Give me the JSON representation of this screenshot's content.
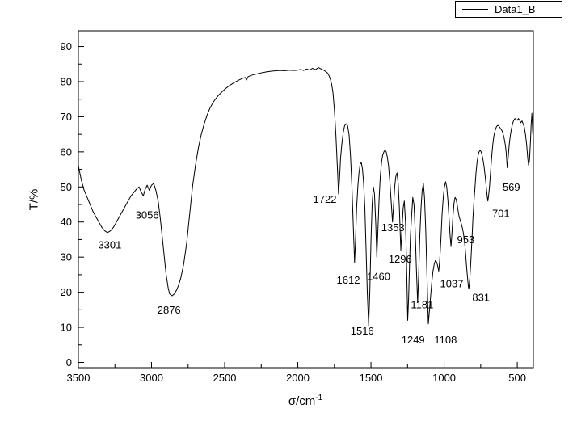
{
  "window": {
    "background": "#ffffff",
    "foreground": "#000000"
  },
  "chart_data": {
    "type": "line",
    "title": "",
    "xlabel_base": "σ/cm",
    "xlabel_sup": "-1",
    "ylabel": "T/%",
    "legend": {
      "label": "Data1_B",
      "position": "top-right"
    },
    "grid": false,
    "x_axis": {
      "direction": "decreasing",
      "left_value": 3500,
      "right_value": 390,
      "major_ticks": [
        3500,
        3000,
        2500,
        2000,
        1500,
        1000,
        500
      ],
      "minor_ticks": [
        3250,
        2750,
        2250,
        1750,
        1250,
        750
      ]
    },
    "y_axis": {
      "bottom_value": -1.5,
      "top_value": 94.5,
      "major_ticks": [
        0,
        10,
        20,
        30,
        40,
        50,
        60,
        70,
        80,
        90
      ],
      "minor_ticks": [
        5,
        15,
        25,
        35,
        45,
        55,
        65,
        75,
        85
      ]
    },
    "series": [
      {
        "name": "Data1_B",
        "color": "#000000",
        "points": [
          [
            3500,
            56
          ],
          [
            3480,
            52
          ],
          [
            3460,
            49
          ],
          [
            3440,
            47
          ],
          [
            3420,
            45
          ],
          [
            3400,
            43
          ],
          [
            3380,
            41.5
          ],
          [
            3360,
            40
          ],
          [
            3340,
            38.5
          ],
          [
            3320,
            37.5
          ],
          [
            3301,
            37
          ],
          [
            3280,
            37.5
          ],
          [
            3260,
            38.5
          ],
          [
            3240,
            40
          ],
          [
            3220,
            41.5
          ],
          [
            3200,
            43
          ],
          [
            3180,
            44.5
          ],
          [
            3160,
            46
          ],
          [
            3140,
            47.5
          ],
          [
            3120,
            48.5
          ],
          [
            3100,
            49.5
          ],
          [
            3085,
            50
          ],
          [
            3070,
            48.5
          ],
          [
            3056,
            47.5
          ],
          [
            3045,
            49.2
          ],
          [
            3030,
            50.5
          ],
          [
            3015,
            49
          ],
          [
            3000,
            50.5
          ],
          [
            2985,
            51
          ],
          [
            2970,
            49
          ],
          [
            2955,
            46
          ],
          [
            2940,
            41
          ],
          [
            2920,
            33
          ],
          [
            2900,
            25
          ],
          [
            2885,
            21
          ],
          [
            2876,
            19.5
          ],
          [
            2860,
            19
          ],
          [
            2845,
            19.5
          ],
          [
            2830,
            20.5
          ],
          [
            2815,
            22
          ],
          [
            2800,
            24
          ],
          [
            2780,
            28
          ],
          [
            2760,
            34
          ],
          [
            2740,
            42
          ],
          [
            2720,
            50
          ],
          [
            2700,
            56
          ],
          [
            2680,
            61
          ],
          [
            2660,
            65
          ],
          [
            2640,
            68
          ],
          [
            2620,
            70.5
          ],
          [
            2600,
            72.5
          ],
          [
            2580,
            74
          ],
          [
            2560,
            75.2
          ],
          [
            2540,
            76.2
          ],
          [
            2520,
            77
          ],
          [
            2500,
            77.8
          ],
          [
            2470,
            78.8
          ],
          [
            2440,
            79.6
          ],
          [
            2410,
            80.3
          ],
          [
            2380,
            80.9
          ],
          [
            2360,
            81.2
          ],
          [
            2350,
            80.5
          ],
          [
            2340,
            81.4
          ],
          [
            2320,
            81.8
          ],
          [
            2300,
            82
          ],
          [
            2270,
            82.3
          ],
          [
            2240,
            82.6
          ],
          [
            2210,
            82.8
          ],
          [
            2180,
            83
          ],
          [
            2150,
            83.1
          ],
          [
            2120,
            83.2
          ],
          [
            2090,
            83.1
          ],
          [
            2060,
            83.3
          ],
          [
            2030,
            83.2
          ],
          [
            2000,
            83.3
          ],
          [
            1980,
            83.5
          ],
          [
            1960,
            83.2
          ],
          [
            1940,
            83.6
          ],
          [
            1920,
            83.3
          ],
          [
            1900,
            83.8
          ],
          [
            1880,
            83.4
          ],
          [
            1860,
            84
          ],
          [
            1840,
            83.6
          ],
          [
            1820,
            83.2
          ],
          [
            1800,
            82.6
          ],
          [
            1790,
            82
          ],
          [
            1780,
            81
          ],
          [
            1770,
            79.5
          ],
          [
            1760,
            77
          ],
          [
            1750,
            72
          ],
          [
            1740,
            65
          ],
          [
            1730,
            56
          ],
          [
            1722,
            48
          ],
          [
            1715,
            52
          ],
          [
            1708,
            58
          ],
          [
            1700,
            62
          ],
          [
            1690,
            65.5
          ],
          [
            1680,
            67.5
          ],
          [
            1670,
            68
          ],
          [
            1660,
            67.5
          ],
          [
            1650,
            65
          ],
          [
            1640,
            59
          ],
          [
            1630,
            50
          ],
          [
            1620,
            38
          ],
          [
            1612,
            28.5
          ],
          [
            1605,
            35
          ],
          [
            1598,
            44
          ],
          [
            1590,
            50
          ],
          [
            1582,
            54
          ],
          [
            1574,
            56.5
          ],
          [
            1566,
            57
          ],
          [
            1558,
            55
          ],
          [
            1550,
            51
          ],
          [
            1542,
            44
          ],
          [
            1534,
            33
          ],
          [
            1525,
            20
          ],
          [
            1516,
            10.5
          ],
          [
            1508,
            20
          ],
          [
            1500,
            35
          ],
          [
            1492,
            45
          ],
          [
            1484,
            50
          ],
          [
            1476,
            48
          ],
          [
            1468,
            40
          ],
          [
            1460,
            30
          ],
          [
            1452,
            38
          ],
          [
            1444,
            47
          ],
          [
            1436,
            53
          ],
          [
            1428,
            57
          ],
          [
            1420,
            59
          ],
          [
            1412,
            60
          ],
          [
            1404,
            60.5
          ],
          [
            1396,
            60
          ],
          [
            1388,
            58.5
          ],
          [
            1380,
            56
          ],
          [
            1370,
            51
          ],
          [
            1362,
            46
          ],
          [
            1353,
            40
          ],
          [
            1345,
            45
          ],
          [
            1338,
            50
          ],
          [
            1330,
            53
          ],
          [
            1322,
            54
          ],
          [
            1314,
            51
          ],
          [
            1306,
            44
          ],
          [
            1296,
            32
          ],
          [
            1288,
            38
          ],
          [
            1280,
            44
          ],
          [
            1272,
            46
          ],
          [
            1264,
            40
          ],
          [
            1258,
            30
          ],
          [
            1252,
            18
          ],
          [
            1249,
            12
          ],
          [
            1243,
            18
          ],
          [
            1236,
            28
          ],
          [
            1230,
            36
          ],
          [
            1222,
            42
          ],
          [
            1214,
            47
          ],
          [
            1206,
            45
          ],
          [
            1198,
            38
          ],
          [
            1190,
            27
          ],
          [
            1181,
            17
          ],
          [
            1174,
            25
          ],
          [
            1166,
            36
          ],
          [
            1158,
            44
          ],
          [
            1150,
            49
          ],
          [
            1142,
            51
          ],
          [
            1134,
            47
          ],
          [
            1126,
            38
          ],
          [
            1118,
            26
          ],
          [
            1108,
            11
          ],
          [
            1100,
            15
          ],
          [
            1092,
            19
          ],
          [
            1084,
            23
          ],
          [
            1076,
            26
          ],
          [
            1068,
            28
          ],
          [
            1060,
            29
          ],
          [
            1050,
            28.5
          ],
          [
            1044,
            27.5
          ],
          [
            1037,
            26
          ],
          [
            1030,
            29
          ],
          [
            1022,
            35
          ],
          [
            1014,
            42
          ],
          [
            1006,
            47
          ],
          [
            998,
            50
          ],
          [
            990,
            51.5
          ],
          [
            982,
            50
          ],
          [
            974,
            46
          ],
          [
            966,
            41
          ],
          [
            959,
            36
          ],
          [
            953,
            33
          ],
          [
            946,
            37
          ],
          [
            939,
            42
          ],
          [
            932,
            45.5
          ],
          [
            925,
            47
          ],
          [
            918,
            46.5
          ],
          [
            911,
            45
          ],
          [
            904,
            43
          ],
          [
            897,
            41.5
          ],
          [
            890,
            40.5
          ],
          [
            883,
            39.5
          ],
          [
            876,
            38.5
          ],
          [
            869,
            37
          ],
          [
            862,
            35
          ],
          [
            855,
            32
          ],
          [
            848,
            28
          ],
          [
            841,
            24.5
          ],
          [
            834,
            21.5
          ],
          [
            831,
            21
          ],
          [
            824,
            24
          ],
          [
            817,
            29
          ],
          [
            810,
            35
          ],
          [
            803,
            41
          ],
          [
            796,
            46
          ],
          [
            789,
            50
          ],
          [
            782,
            54
          ],
          [
            775,
            57
          ],
          [
            768,
            59
          ],
          [
            761,
            60
          ],
          [
            754,
            60.5
          ],
          [
            747,
            60
          ],
          [
            740,
            59
          ],
          [
            733,
            57.5
          ],
          [
            726,
            55.5
          ],
          [
            719,
            53
          ],
          [
            712,
            50
          ],
          [
            706,
            47.5
          ],
          [
            701,
            46
          ],
          [
            696,
            47.5
          ],
          [
            690,
            50
          ],
          [
            684,
            53.5
          ],
          [
            678,
            57
          ],
          [
            672,
            60
          ],
          [
            666,
            62.5
          ],
          [
            660,
            64.5
          ],
          [
            652,
            66
          ],
          [
            644,
            67
          ],
          [
            636,
            67.5
          ],
          [
            628,
            67.5
          ],
          [
            620,
            67
          ],
          [
            612,
            66.5
          ],
          [
            604,
            66
          ],
          [
            596,
            65
          ],
          [
            588,
            63.5
          ],
          [
            580,
            61.5
          ],
          [
            575,
            59.5
          ],
          [
            572,
            57.5
          ],
          [
            569,
            55.5
          ],
          [
            565,
            57
          ],
          [
            560,
            59.5
          ],
          [
            555,
            62
          ],
          [
            548,
            64.5
          ],
          [
            540,
            66.5
          ],
          [
            532,
            68
          ],
          [
            524,
            69
          ],
          [
            516,
            69.5
          ],
          [
            508,
            69.2
          ],
          [
            500,
            69
          ],
          [
            492,
            69.5
          ],
          [
            484,
            69
          ],
          [
            476,
            68.3
          ],
          [
            468,
            68.8
          ],
          [
            460,
            68
          ],
          [
            452,
            67
          ],
          [
            444,
            65
          ],
          [
            436,
            62
          ],
          [
            428,
            58
          ],
          [
            422,
            56
          ],
          [
            416,
            58
          ],
          [
            410,
            63
          ],
          [
            405,
            68
          ],
          [
            400,
            71
          ],
          [
            395,
            66
          ],
          [
            390,
            63
          ]
        ]
      }
    ],
    "annotations": [
      {
        "text": "3301",
        "x": 3285,
        "y": 33.5
      },
      {
        "text": "3056",
        "x": 3030,
        "y": 42
      },
      {
        "text": "2876",
        "x": 2880,
        "y": 15
      },
      {
        "text": "1722",
        "x": 1815,
        "y": 46.5
      },
      {
        "text": "1612",
        "x": 1655,
        "y": 23.5
      },
      {
        "text": "1516",
        "x": 1560,
        "y": 9
      },
      {
        "text": "1460",
        "x": 1448,
        "y": 24.5
      },
      {
        "text": "1353",
        "x": 1350,
        "y": 38.5
      },
      {
        "text": "1296",
        "x": 1300,
        "y": 29.5
      },
      {
        "text": "1249",
        "x": 1212,
        "y": 6.5
      },
      {
        "text": "1181",
        "x": 1150,
        "y": 16.5
      },
      {
        "text": "1108",
        "x": 990,
        "y": 6.5
      },
      {
        "text": "1037",
        "x": 948,
        "y": 22.5
      },
      {
        "text": "953",
        "x": 852,
        "y": 35
      },
      {
        "text": "831",
        "x": 748,
        "y": 18.5
      },
      {
        "text": "701",
        "x": 612,
        "y": 42.5
      },
      {
        "text": "569",
        "x": 540,
        "y": 50
      }
    ]
  }
}
